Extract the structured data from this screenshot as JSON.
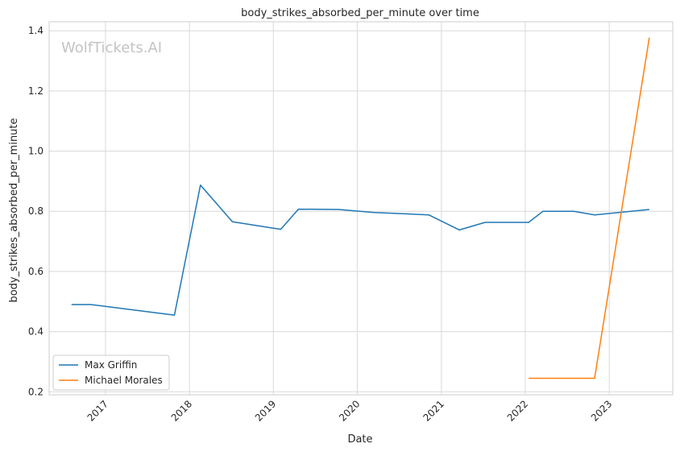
{
  "chart_data": {
    "type": "line",
    "title": "body_strikes_absorbed_per_minute over time",
    "xlabel": "Date",
    "ylabel": "body_strikes_absorbed_per_minute",
    "watermark": "WolfTickets.AI",
    "grid": true,
    "legend_position": "bottom-left",
    "x_tick_labels": [
      "2017",
      "2018",
      "2019",
      "2020",
      "2021",
      "2022",
      "2023"
    ],
    "y_tick_labels": [
      "0.2",
      "0.4",
      "0.6",
      "0.8",
      "1.0",
      "1.2",
      "1.4"
    ],
    "ylim": [
      0.19,
      1.43
    ],
    "xlim": [
      "2016-05-01",
      "2023-10-04"
    ],
    "series": [
      {
        "name": "Max Griffin",
        "color": "#1f77b4",
        "points": [
          {
            "x": "2016-08-06",
            "y": 0.49
          },
          {
            "x": "2016-10-29",
            "y": 0.49
          },
          {
            "x": "2017-10-28",
            "y": 0.455
          },
          {
            "x": "2018-02-18",
            "y": 0.887
          },
          {
            "x": "2018-07-07",
            "y": 0.765
          },
          {
            "x": "2019-02-02",
            "y": 0.74
          },
          {
            "x": "2019-04-20",
            "y": 0.807
          },
          {
            "x": "2019-10-12",
            "y": 0.806
          },
          {
            "x": "2020-03-14",
            "y": 0.796
          },
          {
            "x": "2020-11-07",
            "y": 0.788
          },
          {
            "x": "2021-03-20",
            "y": 0.738
          },
          {
            "x": "2021-07-10",
            "y": 0.763
          },
          {
            "x": "2022-01-15",
            "y": 0.763
          },
          {
            "x": "2022-03-19",
            "y": 0.8
          },
          {
            "x": "2022-07-30",
            "y": 0.8
          },
          {
            "x": "2022-10-29",
            "y": 0.788
          },
          {
            "x": "2023-06-24",
            "y": 0.806
          }
        ]
      },
      {
        "name": "Michael Morales",
        "color": "#ff7f0e",
        "points": [
          {
            "x": "2022-01-15",
            "y": 0.245
          },
          {
            "x": "2022-10-29",
            "y": 0.245
          },
          {
            "x": "2023-06-24",
            "y": 1.377
          }
        ]
      }
    ]
  }
}
